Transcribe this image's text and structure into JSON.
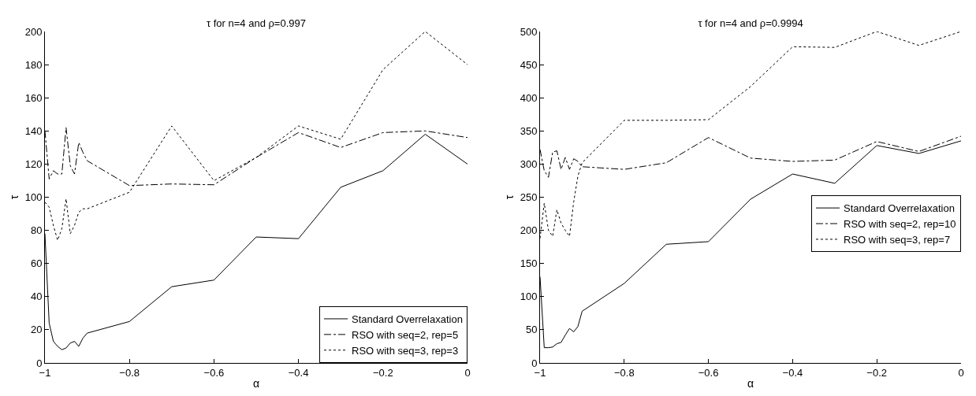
{
  "chart_data": [
    {
      "type": "line",
      "title": "τ for n=4 and ρ=0.997",
      "xlabel": "α",
      "ylabel": "τ",
      "xlim": [
        -1,
        0
      ],
      "xticks": [
        {
          "value": -1,
          "label": "−1"
        },
        {
          "value": -0.8,
          "label": "−0.8"
        },
        {
          "value": -0.6,
          "label": "−0.6"
        },
        {
          "value": -0.4,
          "label": "−0.4"
        },
        {
          "value": -0.2,
          "label": "−0.2"
        },
        0
      ],
      "ylim": [
        0,
        200
      ],
      "yticks": [
        0,
        20,
        40,
        60,
        80,
        100,
        120,
        140,
        160,
        180,
        200
      ],
      "grid": false,
      "legend": "bottom right",
      "marker": "none",
      "x": [
        -1,
        -0.99,
        -0.98,
        -0.97,
        -0.96,
        -0.95,
        -0.94,
        -0.93,
        -0.92,
        -0.91,
        -0.9,
        -0.8,
        -0.7,
        -0.6,
        -0.5,
        -0.4,
        -0.3,
        -0.2,
        -0.1,
        0
      ],
      "series": [
        {
          "name": "Standard Overrelaxation",
          "color": "#000000",
          "line_style": "solid",
          "values": [
            78,
            24,
            13,
            10,
            8,
            9,
            12,
            13,
            10,
            15,
            18,
            25,
            46,
            50,
            76,
            75,
            106,
            116,
            138,
            120
          ]
        },
        {
          "name": "RSO with seq=2, rep=5",
          "color": "#000000",
          "line_style": "dashdot",
          "values": [
            140,
            111,
            116,
            114,
            114,
            142,
            119,
            114,
            133,
            127,
            122,
            107,
            108,
            107.5,
            124,
            139,
            130,
            139,
            140,
            136
          ]
        },
        {
          "name": "RSO with seq=3, rep=3",
          "color": "#000000",
          "line_style": "dotted",
          "values": [
            97,
            94,
            83,
            74,
            81,
            99,
            78,
            83,
            91,
            93,
            93,
            103,
            143,
            110,
            124,
            143,
            135,
            177,
            200,
            180
          ]
        }
      ]
    },
    {
      "type": "line",
      "title": "τ for n=4 and ρ=0.9994",
      "xlabel": "α",
      "ylabel": "τ",
      "xlim": [
        -1,
        0
      ],
      "xticks": [
        {
          "value": -1,
          "label": "−1"
        },
        {
          "value": -0.8,
          "label": "−0.8"
        },
        {
          "value": -0.6,
          "label": "−0.6"
        },
        {
          "value": -0.4,
          "label": "−0.4"
        },
        {
          "value": -0.2,
          "label": "−0.2"
        },
        0
      ],
      "ylim": [
        0,
        500
      ],
      "yticks": [
        0,
        50,
        100,
        150,
        200,
        250,
        300,
        350,
        400,
        450,
        500
      ],
      "grid": false,
      "legend": "right",
      "marker": "none",
      "x": [
        -1,
        -0.99,
        -0.98,
        -0.97,
        -0.96,
        -0.95,
        -0.94,
        -0.93,
        -0.92,
        -0.91,
        -0.9,
        -0.8,
        -0.7,
        -0.6,
        -0.5,
        -0.4,
        -0.3,
        -0.2,
        -0.1,
        0
      ],
      "series": [
        {
          "name": "Standard Overrelaxation",
          "color": "#000000",
          "line_style": "solid",
          "values": [
            130,
            23,
            23,
            24,
            29,
            31,
            42,
            52,
            47,
            55,
            78,
            120,
            179,
            183,
            247,
            285,
            271,
            328,
            316,
            335
          ]
        },
        {
          "name": "RSO with seq=2, rep=10",
          "color": "#000000",
          "line_style": "dashdot",
          "values": [
            322,
            290,
            280,
            318,
            320,
            292,
            310,
            292,
            308,
            304,
            296,
            292,
            302,
            340,
            309,
            304,
            306,
            334,
            319,
            342
          ]
        },
        {
          "name": "RSO with seq=3, rep=7",
          "color": "#000000",
          "line_style": "dotted",
          "values": [
            188,
            241,
            200,
            191,
            231,
            211,
            200,
            191,
            243,
            282,
            302,
            366,
            366,
            367,
            417,
            477,
            476,
            500,
            479,
            500
          ]
        }
      ]
    }
  ]
}
